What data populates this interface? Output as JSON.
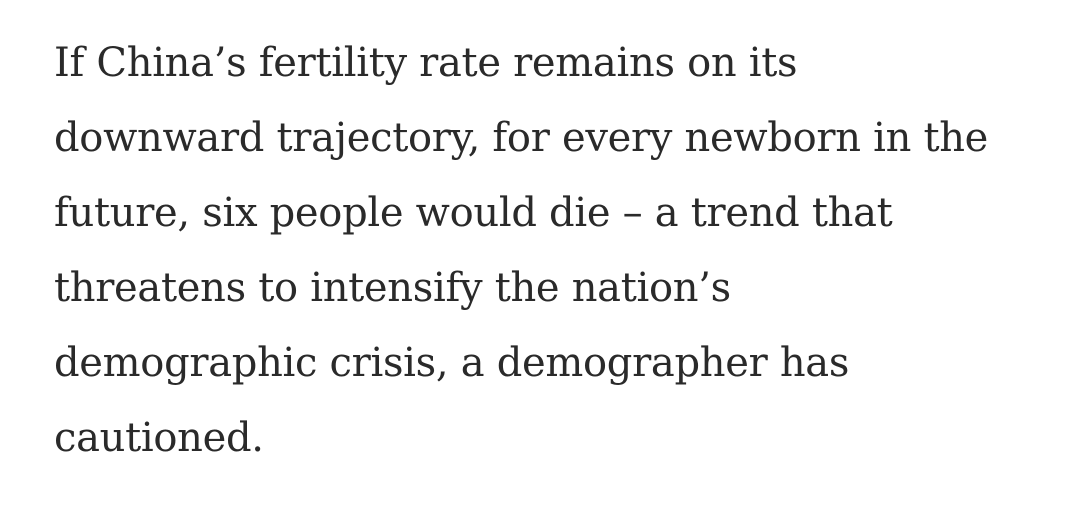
{
  "article": {
    "paragraph_lines": [
      "If China’s fertility rate remains on its",
      "downward trajectory, for every newborn in the",
      "future, six people would die – a trend that",
      "threatens to intensify the nation’s",
      "demographic crisis, a demographer has",
      "cautioned."
    ]
  }
}
